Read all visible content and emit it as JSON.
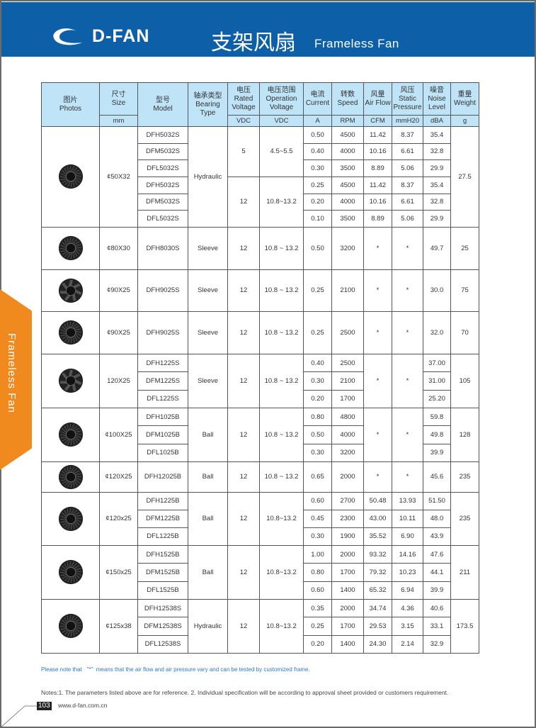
{
  "header": {
    "logo_text": "D-FAN",
    "title_cn": "支架风扇",
    "title_en": "Frameless Fan"
  },
  "side_tab": "Frameless Fan",
  "colors": {
    "banner": "#0d5fa8",
    "side_tab": "#f08a1f",
    "table_header": "#bfe4f7",
    "note": "#2a7ac7"
  },
  "table": {
    "headers": [
      {
        "cn": "图片",
        "en": "Photos",
        "unit": ""
      },
      {
        "cn": "尺寸",
        "en": "Size",
        "unit": "mm"
      },
      {
        "cn": "型号",
        "en": "Model",
        "unit": ""
      },
      {
        "cn": "轴承类型",
        "en": "Bearing Type",
        "unit": ""
      },
      {
        "cn": "电压",
        "en": "Rated Voltage",
        "unit": "VDC"
      },
      {
        "cn": "电压范围",
        "en": "Operation Voltage",
        "unit": "VDC"
      },
      {
        "cn": "电流",
        "en": "Current",
        "unit": "A"
      },
      {
        "cn": "转数",
        "en": "Speed",
        "unit": "RPM"
      },
      {
        "cn": "风量",
        "en": "Air Flow",
        "unit": "CFM"
      },
      {
        "cn": "风压",
        "en": "Static Pressure",
        "unit": "mmH20"
      },
      {
        "cn": "噪音",
        "en": "Noise Level",
        "unit": "dBA"
      },
      {
        "cn": "重量",
        "en": "Weight",
        "unit": "g"
      }
    ],
    "groups": [
      {
        "photo": "centrifugal-fan-50-icon",
        "size": "¢50X32",
        "bearing": "Hydraulic",
        "weight": "27.5",
        "voltage_blocks": [
          {
            "rated": "5",
            "range": "4.5~5.5",
            "rows": 3
          },
          {
            "rated": "12",
            "range": "10.8~13.2",
            "rows": 3
          }
        ],
        "rows": [
          {
            "model": "DFH5032S",
            "current": "0.50",
            "speed": "4500",
            "airflow": "11.42",
            "pressure": "8.37",
            "noise": "35.4"
          },
          {
            "model": "DFM5032S",
            "current": "0.40",
            "speed": "4000",
            "airflow": "10.16",
            "pressure": "6.61",
            "noise": "32.8"
          },
          {
            "model": "DFL5032S",
            "current": "0.30",
            "speed": "3500",
            "airflow": "8.89",
            "pressure": "5.06",
            "noise": "29.9"
          },
          {
            "model": "DFH5032S",
            "current": "0.25",
            "speed": "4500",
            "airflow": "11.42",
            "pressure": "8.37",
            "noise": "35.4"
          },
          {
            "model": "DFM5032S",
            "current": "0.20",
            "speed": "4000",
            "airflow": "10.16",
            "pressure": "6.61",
            "noise": "32.8"
          },
          {
            "model": "DFL5032S",
            "current": "0.10",
            "speed": "3500",
            "airflow": "8.89",
            "pressure": "5.06",
            "noise": "29.9"
          }
        ]
      },
      {
        "photo": "blower-fan-80-icon",
        "size": "¢80X30",
        "bearing": "Sleeve",
        "weight": "25",
        "voltage_blocks": [
          {
            "rated": "12",
            "range": "10.8 ~ 13.2",
            "rows": 1
          }
        ],
        "rows": [
          {
            "model": "DFH8030S",
            "current": "0.50",
            "speed": "3200",
            "airflow": "*",
            "pressure": "*",
            "noise": "49.7"
          }
        ]
      },
      {
        "photo": "axial-fan-90-icon",
        "size": "¢90X25",
        "bearing": "Sleeve",
        "weight": "75",
        "voltage_blocks": [
          {
            "rated": "12",
            "range": "10.8 ~ 13.2",
            "rows": 1
          }
        ],
        "rows": [
          {
            "model": "DFH9025S",
            "current": "0.25",
            "speed": "2100",
            "airflow": "*",
            "pressure": "*",
            "noise": "30.0"
          }
        ]
      },
      {
        "photo": "blower-fan-90-icon",
        "size": "¢90X25",
        "bearing": "Sleeve",
        "weight": "70",
        "voltage_blocks": [
          {
            "rated": "12",
            "range": "10.8 ~ 13.2",
            "rows": 1
          }
        ],
        "rows": [
          {
            "model": "DFH9025S",
            "current": "0.25",
            "speed": "2500",
            "airflow": "*",
            "pressure": "*",
            "noise": "32.0"
          }
        ]
      },
      {
        "photo": "axial-fan-120-icon",
        "size": "120X25",
        "bearing": "Sleeve",
        "weight": "105",
        "voltage_blocks": [
          {
            "rated": "12",
            "range": "10.8 ~ 13.2",
            "rows": 3
          }
        ],
        "merged_airflow": "*",
        "merged_pressure": "*",
        "rows": [
          {
            "model": "DFH1225S",
            "current": "0.40",
            "speed": "2500",
            "noise": "37.00"
          },
          {
            "model": "DFM1225S",
            "current": "0.30",
            "speed": "2100",
            "noise": "31.00"
          },
          {
            "model": "DFL1225S",
            "current": "0.20",
            "speed": "1700",
            "noise": "25.20"
          }
        ]
      },
      {
        "photo": "blower-fan-100-icon",
        "size": "¢100X25",
        "bearing": "Ball",
        "weight": "128",
        "voltage_blocks": [
          {
            "rated": "12",
            "range": "10.8 ~ 13.2",
            "rows": 3
          }
        ],
        "merged_airflow": "*",
        "merged_pressure": "*",
        "rows": [
          {
            "model": "DFH1025B",
            "current": "0.80",
            "speed": "4800",
            "noise": "59.8"
          },
          {
            "model": "DFM1025B",
            "current": "0.50",
            "speed": "4000",
            "noise": "49.8"
          },
          {
            "model": "DFL1025B",
            "current": "0.30",
            "speed": "3200",
            "noise": "39.9"
          }
        ]
      },
      {
        "photo": "blower-fan-120-icon",
        "size": "¢120X25",
        "bearing": "Ball",
        "weight": "235",
        "voltage_blocks": [
          {
            "rated": "12",
            "range": "10.8 ~ 13.2",
            "rows": 1
          }
        ],
        "rows": [
          {
            "model": "DFH12025B",
            "current": "0.65",
            "speed": "2000",
            "airflow": "*",
            "pressure": "*",
            "noise": "45.6"
          }
        ]
      },
      {
        "photo": "blower-fan-120b-icon",
        "size": "¢120x25",
        "bearing": "Ball",
        "weight": "235",
        "voltage_blocks": [
          {
            "rated": "12",
            "range": "10.8~13.2",
            "rows": 3
          }
        ],
        "rows": [
          {
            "model": "DFH1225B",
            "current": "0.60",
            "speed": "2700",
            "airflow": "50.48",
            "pressure": "13.93",
            "noise": "51.50"
          },
          {
            "model": "DFM1225B",
            "current": "0.45",
            "speed": "2300",
            "airflow": "43.00",
            "pressure": "10.11",
            "noise": "48.0"
          },
          {
            "model": "DFL1225B",
            "current": "0.30",
            "speed": "1900",
            "airflow": "35.52",
            "pressure": "6.90",
            "noise": "43.9"
          }
        ]
      },
      {
        "photo": "blower-fan-150-icon",
        "size": "¢150x25",
        "bearing": "Ball",
        "weight": "211",
        "voltage_blocks": [
          {
            "rated": "12",
            "range": "10.8~13.2",
            "rows": 3
          }
        ],
        "rows": [
          {
            "model": "DFH1525B",
            "current": "1.00",
            "speed": "2000",
            "airflow": "93.32",
            "pressure": "14.16",
            "noise": "47.6"
          },
          {
            "model": "DFM1525B",
            "current": "0.80",
            "speed": "1700",
            "airflow": "79.32",
            "pressure": "10.23",
            "noise": "44.1"
          },
          {
            "model": "DFL1525B",
            "current": "0.60",
            "speed": "1400",
            "airflow": "65.32",
            "pressure": "6.94",
            "noise": "39.9"
          }
        ]
      },
      {
        "photo": "blower-fan-125-icon",
        "size": "¢125x38",
        "bearing": "Hydraulic",
        "weight": "173.5",
        "voltage_blocks": [
          {
            "rated": "12",
            "range": "10.8~13.2",
            "rows": 3
          }
        ],
        "rows": [
          {
            "model": "DFH12538S",
            "current": "0.35",
            "speed": "2000",
            "airflow": "34.74",
            "pressure": "4.36",
            "noise": "40.6"
          },
          {
            "model": "DFM12538S",
            "current": "0.25",
            "speed": "1700",
            "airflow": "29.53",
            "pressure": "3.15",
            "noise": "33.1"
          },
          {
            "model": "DFL12538S",
            "current": "0.20",
            "speed": "1400",
            "airflow": "24.30",
            "pressure": "2.14",
            "noise": "32.9"
          }
        ]
      }
    ]
  },
  "notes": {
    "asterisk_note_a": "Please note that",
    "asterisk_symbol": "\"*\"",
    "asterisk_note_b": "means that the air flow and air pressure vary and can be tested by customized frame.",
    "general": "Notes:1. The parameters listed above are for reference.   2. Individual specification will be according to approval sheet provided or customers requirement."
  },
  "footer": {
    "page_number": "103",
    "url": "www.d-fan.com.cn"
  }
}
